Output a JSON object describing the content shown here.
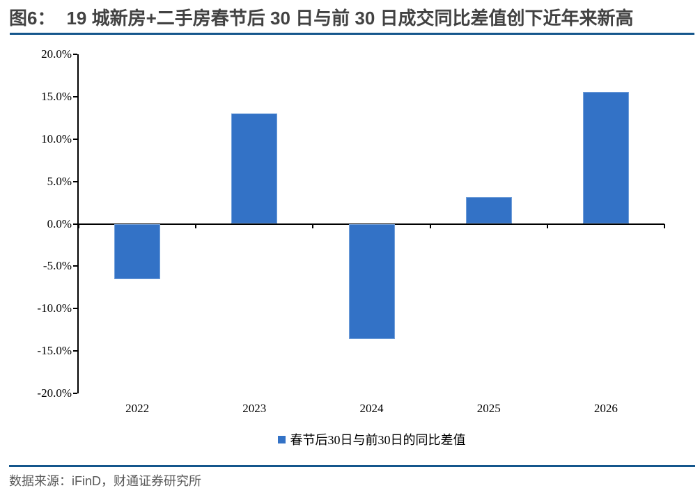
{
  "header": {
    "figure_label": "图6：",
    "title": "19 城新房+二手房春节后 30 日与前 30 日成交同比差值创下近年来新高"
  },
  "legend": {
    "label": "春节后30日与前30日的同比差值"
  },
  "footer": {
    "source_text": "数据来源：iFinD，财通证券研究所"
  },
  "colors": {
    "bar_fill": "#3372C6",
    "bar_border": "#73A0DA",
    "accent_rule": "#14568C",
    "axis": "#000000",
    "title_text": "#424242",
    "footer_text": "#595959"
  },
  "chart_data": {
    "type": "bar",
    "title": "19 城新房+二手房春节后 30 日与前 30 日成交同比差值创下近年来新高",
    "categories": [
      "2022",
      "2023",
      "2024",
      "2025",
      "2026"
    ],
    "series": [
      {
        "name": "春节后30日与前30日的同比差值",
        "values": [
          -6.5,
          13.0,
          -13.6,
          3.2,
          15.6
        ]
      }
    ],
    "xlabel": "",
    "ylabel": "",
    "ylim": [
      -20,
      20
    ],
    "ytick_step": 5,
    "ytick_decimals": 1,
    "ytick_suffix": "%",
    "grid": false,
    "legend_position": "bottom"
  }
}
